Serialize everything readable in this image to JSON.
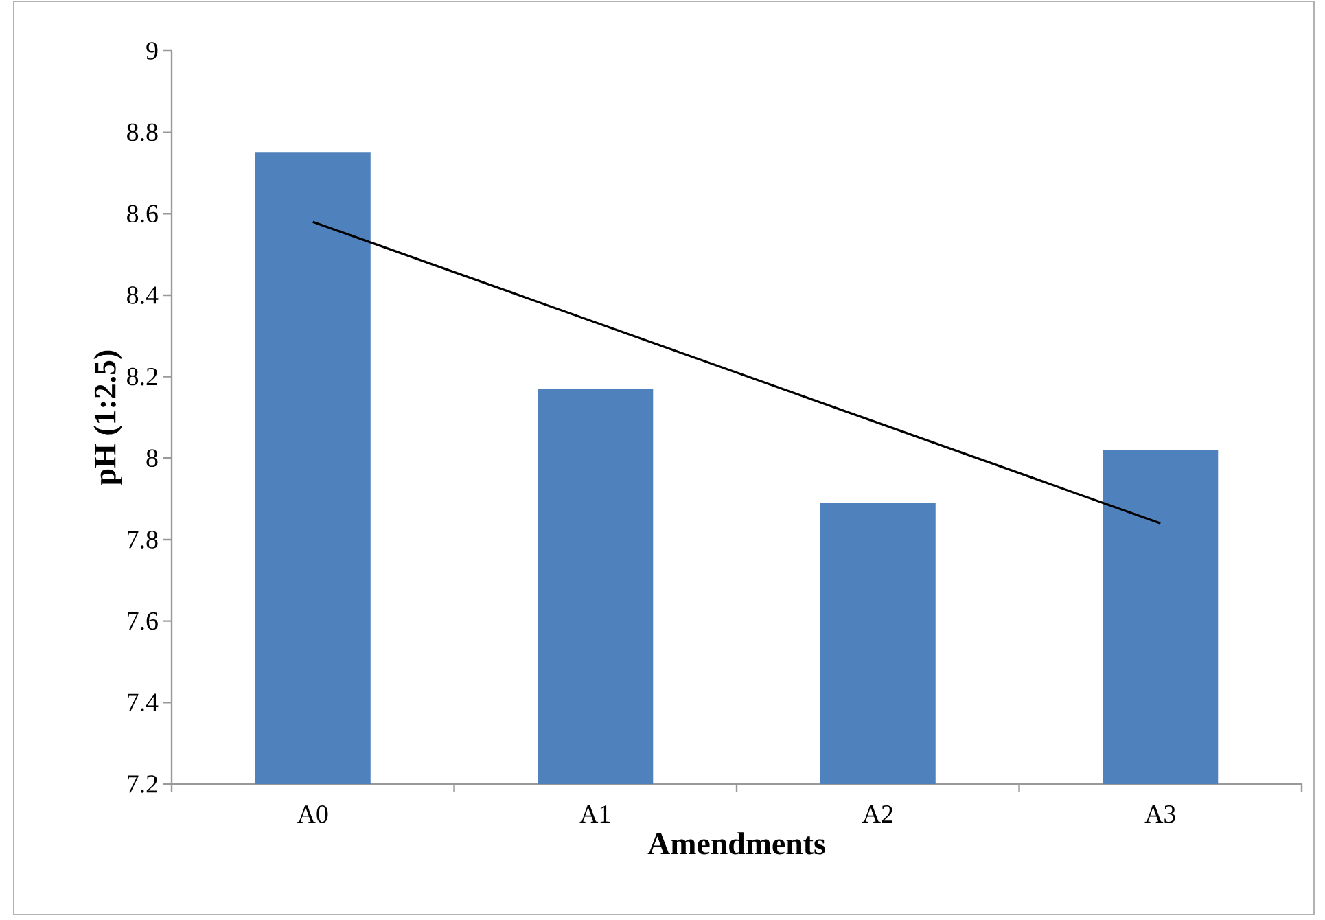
{
  "chart_data": {
    "type": "bar",
    "xlabel": "Amendments",
    "ylabel": "pH (1:2.5)",
    "categories": [
      "A0",
      "A1",
      "A2",
      "A3"
    ],
    "series": [
      {
        "color": "#4f81bd",
        "values": [
          8.75,
          8.17,
          7.89,
          8.02
        ]
      },
      {
        "type": "line",
        "color": "#000000",
        "x": [
          "A0",
          "A3"
        ],
        "values": [
          8.58,
          7.84
        ]
      }
    ],
    "ylim": [
      7.2,
      9
    ],
    "yticks": [
      7.2,
      7.4,
      7.6,
      7.8,
      8,
      8.2,
      8.4,
      8.6,
      8.8,
      9
    ]
  }
}
